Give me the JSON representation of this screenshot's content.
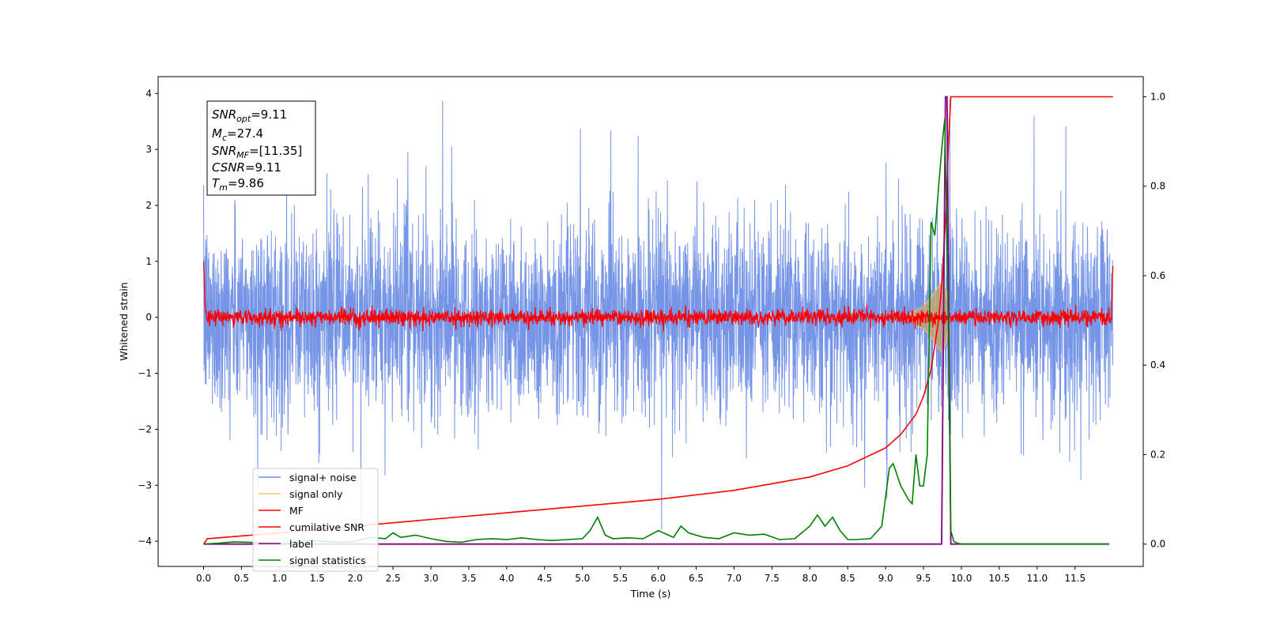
{
  "chart_data": {
    "type": "line",
    "xlabel": "Time (s)",
    "ylabel_left": "Whitened strain",
    "ylabel_right": "",
    "xlim": [
      -0.6,
      12.4
    ],
    "ylim_left": [
      -4.45,
      4.3
    ],
    "ylim_right": [
      -0.05,
      1.045
    ],
    "x_ticks": [
      "0.0",
      "0.5",
      "1.0",
      "1.5",
      "2.0",
      "2.5",
      "3.0",
      "3.5",
      "4.0",
      "4.5",
      "5.0",
      "5.5",
      "6.0",
      "6.5",
      "7.0",
      "7.5",
      "8.0",
      "8.5",
      "9.0",
      "9.5",
      "10.0",
      "10.5",
      "11.0",
      "11.5"
    ],
    "y_ticks_left": [
      "4",
      "3",
      "2",
      "1",
      "0",
      "−1",
      "−2",
      "−3",
      "−4"
    ],
    "y_ticks_right": [
      "1.0",
      "0.8",
      "0.6",
      "0.4",
      "0.2",
      "0.0"
    ],
    "grid": false,
    "legend_position": "lower-left",
    "legend": [
      "signal+ noise",
      "signal only",
      "MF",
      "cumilative SNR",
      "label",
      "signal statistics"
    ],
    "colors": {
      "signal_noise": "#6f8fe6",
      "signal_only": "#f7c46a",
      "signal_fill": "#c8a46e",
      "mf": "#ff0000",
      "cumulative_snr": "#ff0000",
      "label": "#800080",
      "signal_statistics": "#008000"
    },
    "annotation": {
      "snr_opt": {
        "base": "SNR",
        "sub": "opt",
        "value": "=9.11"
      },
      "mc": {
        "base": "M",
        "sub": "c",
        "value": "=27.4"
      },
      "snr_mf": {
        "base": "SNR",
        "sub": "MF",
        "value": "=[11.35]"
      },
      "csnr": {
        "base": "CSNR",
        "sub": "",
        "value": "=9.11"
      },
      "tm": {
        "base": "T",
        "sub": "m",
        "value": "=9.86"
      }
    },
    "series": [
      {
        "name": "signal+ noise",
        "axis": "left",
        "x_range": [
          0.0,
          12.0
        ],
        "noise_std": 0.85,
        "envelope_max": 3.9,
        "envelope_min": -3.8
      },
      {
        "name": "signal only",
        "axis": "left",
        "x": [
          9.3,
          9.5,
          9.6,
          9.7,
          9.75,
          9.8,
          9.85
        ],
        "amplitude": [
          0.05,
          0.2,
          0.35,
          0.55,
          0.65,
          0.45,
          0.05
        ]
      },
      {
        "name": "MF",
        "axis": "left",
        "x_range": [
          0.0,
          12.0
        ],
        "noise_std": 0.07,
        "start_value": 1.0,
        "end_value": 0.92
      },
      {
        "name": "cumilative SNR",
        "axis": "right",
        "x": [
          0.0,
          0.05,
          1.0,
          2.0,
          3.0,
          4.0,
          5.0,
          6.0,
          7.0,
          7.5,
          8.0,
          8.5,
          9.0,
          9.2,
          9.4,
          9.5,
          9.6,
          9.7,
          9.75,
          9.8,
          9.83,
          9.86,
          12.0
        ],
        "y": [
          0.0,
          0.012,
          0.025,
          0.04,
          0.055,
          0.07,
          0.085,
          0.1,
          0.12,
          0.135,
          0.15,
          0.175,
          0.215,
          0.245,
          0.29,
          0.33,
          0.39,
          0.5,
          0.6,
          0.75,
          0.9,
          1.0,
          1.0
        ]
      },
      {
        "name": "label",
        "axis": "right",
        "x": [
          0.0,
          9.74,
          9.79,
          9.81,
          9.86,
          11.95
        ],
        "y": [
          0.0,
          0.0,
          1.0,
          1.0,
          0.0,
          0.0
        ]
      },
      {
        "name": "signal statistics",
        "axis": "right",
        "x": [
          0.0,
          0.2,
          0.4,
          0.6,
          0.8,
          1.0,
          1.2,
          1.4,
          1.6,
          1.8,
          2.0,
          2.2,
          2.4,
          2.5,
          2.6,
          2.8,
          3.0,
          3.2,
          3.4,
          3.6,
          3.8,
          4.0,
          4.2,
          4.4,
          4.6,
          4.8,
          5.0,
          5.1,
          5.2,
          5.3,
          5.4,
          5.6,
          5.8,
          6.0,
          6.2,
          6.3,
          6.4,
          6.6,
          6.8,
          7.0,
          7.2,
          7.4,
          7.6,
          7.8,
          8.0,
          8.1,
          8.2,
          8.3,
          8.4,
          8.5,
          8.6,
          8.8,
          8.95,
          9.05,
          9.1,
          9.2,
          9.3,
          9.35,
          9.4,
          9.45,
          9.5,
          9.55,
          9.6,
          9.65,
          9.7,
          9.75,
          9.78,
          9.82,
          9.86,
          9.9,
          9.95,
          10.0,
          10.5,
          11.0,
          11.5,
          11.95
        ],
        "y": [
          0.0,
          0.002,
          0.005,
          0.004,
          0.002,
          0.0,
          0.004,
          0.008,
          0.006,
          0.004,
          0.006,
          0.015,
          0.012,
          0.025,
          0.015,
          0.02,
          0.012,
          0.006,
          0.004,
          0.01,
          0.012,
          0.01,
          0.014,
          0.01,
          0.008,
          0.01,
          0.012,
          0.03,
          0.06,
          0.02,
          0.012,
          0.014,
          0.012,
          0.03,
          0.015,
          0.04,
          0.025,
          0.015,
          0.012,
          0.025,
          0.02,
          0.022,
          0.01,
          0.012,
          0.04,
          0.065,
          0.04,
          0.06,
          0.03,
          0.01,
          0.01,
          0.012,
          0.04,
          0.17,
          0.18,
          0.13,
          0.1,
          0.09,
          0.2,
          0.13,
          0.13,
          0.2,
          0.72,
          0.69,
          0.8,
          0.9,
          0.95,
          0.6,
          0.03,
          0.006,
          0.002,
          0.0,
          0.0,
          0.0,
          0.0,
          0.0
        ]
      }
    ]
  }
}
